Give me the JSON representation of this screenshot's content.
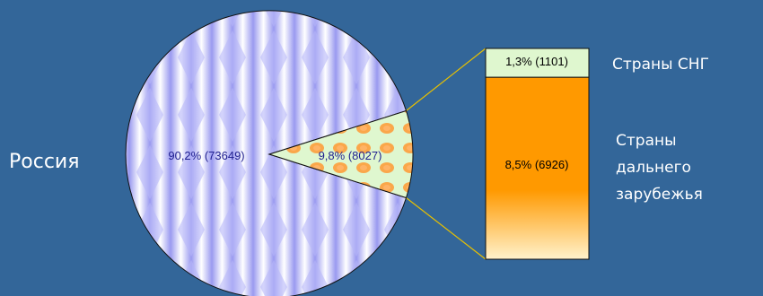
{
  "chart_data": {
    "type": "pie",
    "title": "",
    "slices": [
      {
        "name": "Россия",
        "percent": 90.2,
        "value": 73649,
        "label": "90,2% (73649)"
      },
      {
        "name": "",
        "percent": 9.8,
        "value": 8027,
        "label": "9,8% (8027)",
        "exploded_to_bar": true
      }
    ],
    "breakdown_bar": {
      "type": "stacked-bar",
      "segments": [
        {
          "name": "Страны СНГ",
          "percent": 1.3,
          "value": 1101,
          "label": "1,3% (1101)",
          "color": "#dff7cf"
        },
        {
          "name": "Страны дальнего зарубежья",
          "percent": 8.5,
          "value": 6926,
          "label": "8,5% (6926)",
          "color": "#ff9900"
        }
      ]
    },
    "legend_labels": {
      "russia": "Россия",
      "cis": "Страны СНГ",
      "far_abroad": [
        "Страны",
        "дальнего",
        "зарубежья"
      ]
    },
    "colors": {
      "background": "#336699",
      "pie_main": "#c8c8ff",
      "pie_slice": "#dff7cf",
      "slice_pattern": "#ff9933",
      "bar_top": "#dff7cf",
      "bar_bottom": "#ff9900",
      "connector": "#e8c000",
      "text": "#ffffff",
      "data_text": "#1f1f8f"
    }
  }
}
